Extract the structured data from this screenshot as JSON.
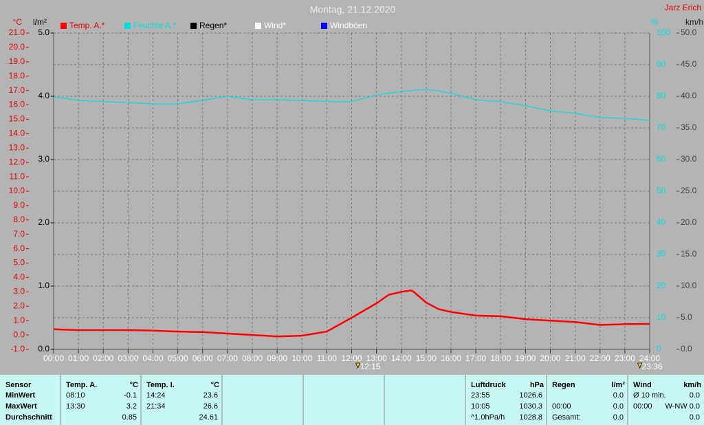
{
  "chart_data": {
    "type": "line",
    "title": "Montag, 21.12.2020",
    "author": "Jarz Erich",
    "x": [
      "00:00",
      "01:00",
      "02:00",
      "03:00",
      "04:00",
      "05:00",
      "06:00",
      "07:00",
      "08:00",
      "09:00",
      "10:00",
      "11:00",
      "12:00",
      "12:30",
      "13:00",
      "13:30",
      "14:00",
      "14:24",
      "14:30",
      "15:00",
      "15:30",
      "16:00",
      "17:00",
      "18:00",
      "19:00",
      "20:00",
      "21:00",
      "22:00",
      "23:00",
      "24:00"
    ],
    "series": [
      {
        "name": "Temp. A.*",
        "color": "#ff0000",
        "axis": "y",
        "values": [
          0.4,
          0.34,
          0.34,
          0.34,
          0.3,
          0.24,
          0.2,
          0.1,
          0.0,
          -0.1,
          -0.05,
          0.24,
          1.2,
          1.7,
          2.2,
          2.8,
          3.0,
          3.1,
          3.0,
          2.25,
          1.8,
          1.6,
          1.35,
          1.3,
          1.1,
          1.0,
          0.9,
          0.7,
          0.75,
          0.77
        ]
      },
      {
        "name": "Feuchte A.*",
        "color": "#00e0e0",
        "axis": "y2",
        "values": [
          79.8,
          78.7,
          78.3,
          78.0,
          77.6,
          77.6,
          78.7,
          80.0,
          78.9,
          78.9,
          78.7,
          78.3,
          78.3,
          79.4,
          80.4,
          81.0,
          81.5,
          81.8,
          81.9,
          82.2,
          81.7,
          80.9,
          78.9,
          78.3,
          77.0,
          75.4,
          74.6,
          73.3,
          73.0,
          72.4
        ]
      }
    ],
    "legend_items": [
      {
        "name": "Regen*",
        "color": "#000000"
      },
      {
        "name": "Wind*",
        "color": "#ffffff"
      },
      {
        "name": "Windböen",
        "color": "#0000ff"
      }
    ],
    "markers": [
      "12:15",
      "23:36"
    ],
    "xticks": [
      "00:00",
      "01:00",
      "02:00",
      "03:00",
      "04:00",
      "05:00",
      "06:00",
      "07:00",
      "08:00",
      "09:00",
      "10:00",
      "11:00",
      "12:00",
      "13:00",
      "14:00",
      "15:00",
      "16:00",
      "17:00",
      "18:00",
      "19:00",
      "20:00",
      "21:00",
      "22:00",
      "23:00",
      "24:00"
    ],
    "y_label": "°C",
    "ylim": [
      -1,
      21
    ],
    "yticks": [
      {
        "value": -1,
        "label": "-1.0"
      },
      {
        "value": 0,
        "label": "0.0"
      },
      {
        "value": 1,
        "label": "1.0"
      },
      {
        "value": 2,
        "label": "2.0"
      },
      {
        "value": 3,
        "label": "3.0"
      },
      {
        "value": 4,
        "label": "4.0"
      },
      {
        "value": 5,
        "label": "5.0"
      },
      {
        "value": 6,
        "label": "6.0"
      },
      {
        "value": 7,
        "label": "7.0"
      },
      {
        "value": 8,
        "label": "8.0"
      },
      {
        "value": 9,
        "label": "9.0"
      },
      {
        "value": 10,
        "label": "10.0"
      },
      {
        "value": 11,
        "label": "11.0"
      },
      {
        "value": 12,
        "label": "12.0"
      },
      {
        "value": 13,
        "label": "13.0"
      },
      {
        "value": 14,
        "label": "14.0"
      },
      {
        "value": 15,
        "label": "15.0"
      },
      {
        "value": 16,
        "label": "16.0"
      },
      {
        "value": 17,
        "label": "17.0"
      },
      {
        "value": 18,
        "label": "18.0"
      },
      {
        "value": 19,
        "label": "19.0"
      },
      {
        "value": 20,
        "label": "20.0"
      },
      {
        "value": 21,
        "label": "21.0"
      }
    ],
    "y3_label": "l/m²",
    "y3lim": [
      0,
      5
    ],
    "y3ticks": [
      {
        "value": 0,
        "label": "0.0"
      },
      {
        "value": 1,
        "label": "1.0"
      },
      {
        "value": 2,
        "label": "2.0"
      },
      {
        "value": 3,
        "label": "3.0"
      },
      {
        "value": 4,
        "label": "4.0"
      },
      {
        "value": 5,
        "label": "5.0"
      }
    ],
    "y2_label": "%",
    "y2lim": [
      0,
      100
    ],
    "y2ticks": [
      0,
      10,
      20,
      30,
      40,
      50,
      60,
      70,
      80,
      90,
      100
    ],
    "y4_label": "km/h",
    "y4lim": [
      0,
      50
    ],
    "y4ticks": [
      {
        "value": 0,
        "label": "0.0"
      },
      {
        "value": 5,
        "label": "5.0"
      },
      {
        "value": 10,
        "label": "10.0"
      },
      {
        "value": 15,
        "label": "15.0"
      },
      {
        "value": 20,
        "label": "20.0"
      },
      {
        "value": 25,
        "label": "25.0"
      },
      {
        "value": 30,
        "label": "30.0"
      },
      {
        "value": 35,
        "label": "35.0"
      },
      {
        "value": 40,
        "label": "40.0"
      },
      {
        "value": 45,
        "label": "45.0"
      },
      {
        "value": 50,
        "label": "50.0"
      }
    ],
    "grid": true
  },
  "table": {
    "columns": [
      {
        "header": "Sensor",
        "rows": [
          "MinWert",
          "MaxWert",
          "Durchschnitt"
        ]
      },
      {
        "header": "Temp. A.",
        "unit": "°C",
        "rows": [
          [
            "08:10",
            "-0.1"
          ],
          [
            "13:30",
            "3.2"
          ],
          [
            null,
            "0.85"
          ]
        ]
      },
      {
        "header": "Temp. I.",
        "unit": "°C",
        "rows": [
          [
            "14:24",
            "23.6"
          ],
          [
            "21:34",
            "26.6"
          ],
          [
            null,
            "24.61"
          ]
        ]
      },
      {
        "header": "Luftdruck",
        "unit": "hPa",
        "rows": [
          [
            "23:55",
            "1026.6"
          ],
          [
            "10:05",
            "1030.3"
          ],
          [
            "^1.0hPa/h",
            "1028.8"
          ]
        ]
      },
      {
        "header": "Regen",
        "unit": "l/m²",
        "rows": [
          [
            null,
            "0.0"
          ],
          [
            "00:00",
            "0.0"
          ],
          [
            "Gesamt:",
            "0.0"
          ]
        ]
      },
      {
        "header": "Wind",
        "unit": "km/h",
        "rows": [
          [
            "Ø 10 min.",
            "0.0"
          ],
          [
            "00:00",
            "W-NW 0.0"
          ],
          [
            null,
            "0.0"
          ]
        ]
      }
    ]
  }
}
